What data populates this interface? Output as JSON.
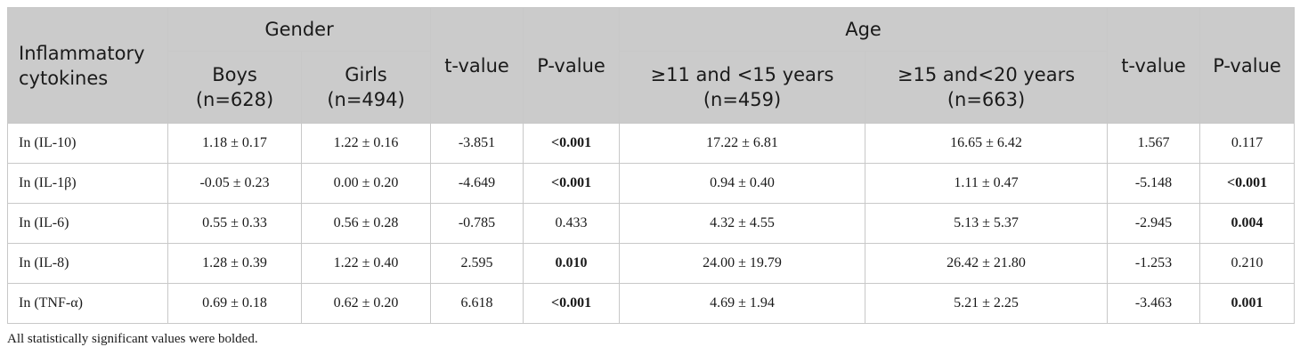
{
  "table": {
    "row_header": [
      "Inflammatory",
      "cytokines"
    ],
    "group_gender": "Gender",
    "group_age": "Age",
    "col_boys": [
      "Boys",
      "(n=628)"
    ],
    "col_girls": [
      "Girls",
      "(n=494)"
    ],
    "col_t1": "t-value",
    "col_p1": "P-value",
    "col_age1": [
      "≥11 and <15 years",
      "(n=459)"
    ],
    "col_age2": [
      "≥15 and<20 years",
      "(n=663)"
    ],
    "col_t2": "t-value",
    "col_p2": "P-value",
    "rows": [
      {
        "label": "In (IL-10)",
        "boys": "1.18 ± 0.17",
        "girls": "1.22 ± 0.16",
        "t1": "-3.851",
        "p1": "<0.001",
        "p1_bold": true,
        "age1": "17.22 ± 6.81",
        "age2": "16.65 ± 6.42",
        "t2": "1.567",
        "p2": "0.117",
        "p2_bold": false
      },
      {
        "label": "In (IL-1β)",
        "boys": "-0.05 ± 0.23",
        "girls": "0.00 ± 0.20",
        "t1": "-4.649",
        "p1": "<0.001",
        "p1_bold": true,
        "age1": "0.94 ± 0.40",
        "age2": "1.11 ± 0.47",
        "t2": "-5.148",
        "p2": "<0.001",
        "p2_bold": true
      },
      {
        "label": "In (IL-6)",
        "boys": "0.55 ± 0.33",
        "girls": "0.56 ± 0.28",
        "t1": "-0.785",
        "p1": "0.433",
        "p1_bold": false,
        "age1": "4.32 ± 4.55",
        "age2": "5.13 ± 5.37",
        "t2": "-2.945",
        "p2": "0.004",
        "p2_bold": true
      },
      {
        "label": "In (IL-8)",
        "boys": "1.28 ± 0.39",
        "girls": "1.22 ± 0.40",
        "t1": "2.595",
        "p1": "0.010",
        "p1_bold": true,
        "age1": "24.00 ± 19.79",
        "age2": "26.42 ± 21.80",
        "t2": "-1.253",
        "p2": "0.210",
        "p2_bold": false
      },
      {
        "label": "In (TNF-α)",
        "boys": "0.69 ± 0.18",
        "girls": "0.62 ± 0.20",
        "t1": "6.618",
        "p1": "<0.001",
        "p1_bold": true,
        "age1": "4.69 ± 1.94",
        "age2": "5.21 ± 2.25",
        "t2": "-3.463",
        "p2": "0.001",
        "p2_bold": true
      }
    ]
  },
  "footnote": "All statistically significant values were bolded."
}
